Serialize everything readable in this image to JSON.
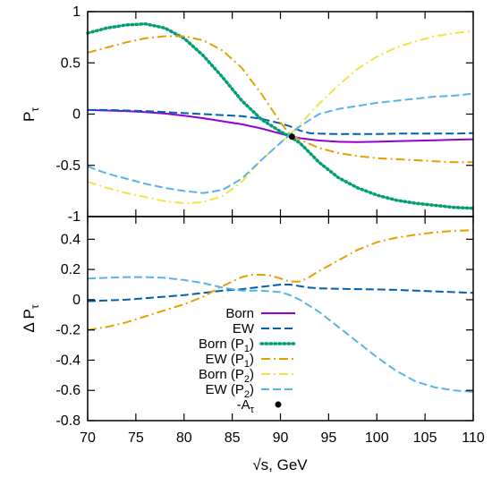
{
  "chart_data": [
    {
      "type": "line",
      "ylabel": "P",
      "ylabel_sub": "τ",
      "xlim": [
        70,
        110
      ],
      "ylim": [
        -1,
        1
      ],
      "yticks": [
        -1,
        -0.5,
        0,
        0.5,
        1
      ],
      "ytick_labels": [
        "-1",
        "-0.5",
        "0",
        "0.5",
        "1"
      ],
      "grid": false,
      "series": [
        {
          "key": "born",
          "color": "#9400d3",
          "dash": "solid",
          "x": [
            70,
            72,
            74,
            76,
            78,
            80,
            82,
            84,
            86,
            88,
            90,
            91,
            92,
            94,
            96,
            98,
            100,
            102,
            104,
            106,
            108,
            110
          ],
          "y": [
            0.04,
            0.035,
            0.03,
            0.02,
            0.005,
            -0.015,
            -0.04,
            -0.07,
            -0.1,
            -0.14,
            -0.19,
            -0.215,
            -0.235,
            -0.258,
            -0.27,
            -0.273,
            -0.27,
            -0.265,
            -0.26,
            -0.255,
            -0.25,
            -0.245
          ]
        },
        {
          "key": "ew",
          "color": "#0060ad",
          "dash": "dashed",
          "x": [
            70,
            72,
            74,
            76,
            78,
            80,
            82,
            84,
            86,
            88,
            90,
            91,
            92,
            93,
            94,
            96,
            98,
            100,
            102,
            104,
            106,
            108,
            110
          ],
          "y": [
            0.04,
            0.04,
            0.035,
            0.03,
            0.02,
            0.01,
            0.0,
            -0.01,
            -0.02,
            -0.045,
            -0.09,
            -0.12,
            -0.16,
            -0.185,
            -0.19,
            -0.195,
            -0.195,
            -0.195,
            -0.19,
            -0.19,
            -0.19,
            -0.19,
            -0.185
          ]
        },
        {
          "key": "born_p1",
          "color": "#009e73",
          "dash": "dotted",
          "x": [
            70,
            72,
            74,
            76,
            78,
            80,
            82,
            84,
            86,
            88,
            90,
            91,
            92,
            94,
            96,
            98,
            100,
            102,
            104,
            106,
            108,
            110
          ],
          "y": [
            0.79,
            0.84,
            0.87,
            0.88,
            0.84,
            0.74,
            0.57,
            0.36,
            0.13,
            -0.05,
            -0.17,
            -0.22,
            -0.28,
            -0.47,
            -0.62,
            -0.72,
            -0.79,
            -0.84,
            -0.87,
            -0.89,
            -0.91,
            -0.92
          ]
        },
        {
          "key": "ew_p1",
          "color": "#e69f00",
          "dash": "dashdot",
          "x": [
            70,
            72,
            74,
            76,
            78,
            80,
            82,
            84,
            86,
            88,
            90,
            91,
            92,
            94,
            96,
            98,
            100,
            102,
            104,
            106,
            108,
            110
          ],
          "y": [
            0.6,
            0.65,
            0.7,
            0.74,
            0.76,
            0.76,
            0.72,
            0.62,
            0.45,
            0.2,
            -0.08,
            -0.2,
            -0.25,
            -0.33,
            -0.38,
            -0.41,
            -0.43,
            -0.44,
            -0.45,
            -0.46,
            -0.47,
            -0.47
          ]
        },
        {
          "key": "born_p2",
          "color": "#f0e442",
          "dash": "dashdot",
          "x": [
            70,
            72,
            74,
            76,
            78,
            80,
            82,
            84,
            86,
            88,
            90,
            91,
            92,
            94,
            96,
            98,
            100,
            102,
            104,
            106,
            108,
            110
          ],
          "y": [
            -0.66,
            -0.72,
            -0.77,
            -0.81,
            -0.85,
            -0.87,
            -0.86,
            -0.8,
            -0.66,
            -0.45,
            -0.28,
            -0.2,
            -0.1,
            0.1,
            0.28,
            0.44,
            0.56,
            0.65,
            0.71,
            0.76,
            0.79,
            0.81
          ]
        },
        {
          "key": "ew_p2",
          "color": "#56b4e9",
          "dash": "dashed",
          "x": [
            70,
            72,
            74,
            76,
            78,
            80,
            82,
            84,
            86,
            88,
            90,
            91,
            92,
            94,
            96,
            98,
            100,
            102,
            104,
            106,
            108,
            110
          ],
          "y": [
            -0.51,
            -0.58,
            -0.63,
            -0.68,
            -0.72,
            -0.75,
            -0.77,
            -0.74,
            -0.63,
            -0.45,
            -0.28,
            -0.2,
            -0.12,
            0.0,
            0.05,
            0.08,
            0.11,
            0.13,
            0.15,
            0.17,
            0.18,
            0.2
          ]
        }
      ],
      "points": [
        {
          "key": "a_tau",
          "x": 91.2,
          "y": -0.22,
          "color": "#000000"
        }
      ]
    },
    {
      "type": "line",
      "xlabel": "√s, GeV",
      "ylabel": "Δ P",
      "ylabel_sub": "τ",
      "xlim": [
        70,
        110
      ],
      "ylim": [
        -0.8,
        0.55
      ],
      "xticks": [
        70,
        75,
        80,
        85,
        90,
        95,
        100,
        105,
        110
      ],
      "xtick_labels": [
        "70",
        "75",
        "80",
        "85",
        "90",
        "95",
        "100",
        "105",
        "110"
      ],
      "yticks": [
        -0.8,
        -0.6,
        -0.4,
        -0.2,
        0,
        0.2,
        0.4
      ],
      "ytick_labels": [
        "-0.8",
        "-0.6",
        "-0.4",
        "-0.2",
        "0",
        "0.2",
        "0.4"
      ],
      "grid": false,
      "legend_position": "bottom-center",
      "series": [
        {
          "key": "dp_ew",
          "color": "#0060ad",
          "dash": "dashed",
          "x": [
            70,
            72,
            74,
            76,
            78,
            80,
            82,
            84,
            86,
            88,
            90,
            91,
            92,
            93,
            94,
            96,
            98,
            100,
            102,
            104,
            106,
            108,
            110
          ],
          "y": [
            -0.01,
            -0.005,
            0.0,
            0.01,
            0.02,
            0.03,
            0.045,
            0.06,
            0.07,
            0.085,
            0.1,
            0.1,
            0.09,
            0.08,
            0.075,
            0.072,
            0.07,
            0.068,
            0.065,
            0.06,
            0.055,
            0.05,
            0.045
          ]
        },
        {
          "key": "dp_p1",
          "color": "#e69f00",
          "dash": "dashdot",
          "x": [
            70,
            72,
            74,
            76,
            78,
            80,
            82,
            84,
            86,
            87,
            88,
            89,
            90,
            91,
            92,
            93,
            94,
            96,
            98,
            100,
            102,
            104,
            106,
            108,
            110
          ],
          "y": [
            -0.2,
            -0.18,
            -0.15,
            -0.11,
            -0.07,
            -0.03,
            0.02,
            0.09,
            0.15,
            0.165,
            0.165,
            0.16,
            0.14,
            0.12,
            0.12,
            0.15,
            0.19,
            0.26,
            0.33,
            0.38,
            0.41,
            0.43,
            0.445,
            0.455,
            0.46
          ]
        },
        {
          "key": "dp_p2",
          "color": "#56b4e9",
          "dash": "dashed",
          "x": [
            70,
            72,
            74,
            76,
            78,
            80,
            82,
            84,
            86,
            88,
            90,
            91,
            92,
            94,
            96,
            98,
            100,
            102,
            104,
            106,
            108,
            110
          ],
          "y": [
            0.14,
            0.145,
            0.15,
            0.15,
            0.145,
            0.13,
            0.11,
            0.08,
            0.06,
            0.06,
            0.05,
            0.03,
            0.0,
            -0.08,
            -0.18,
            -0.28,
            -0.38,
            -0.47,
            -0.54,
            -0.58,
            -0.6,
            -0.61
          ]
        }
      ]
    }
  ],
  "legend": [
    {
      "key": "born",
      "label": "Born",
      "sub": "",
      "suffix": "",
      "style": "solid",
      "color": "#9400d3"
    },
    {
      "key": "ew",
      "label": "EW",
      "sub": "",
      "suffix": "",
      "style": "dashed",
      "color": "#0060ad"
    },
    {
      "key": "born_p1",
      "label": "Born (P",
      "sub": "1",
      "suffix": ")",
      "style": "dotted",
      "color": "#009e73"
    },
    {
      "key": "ew_p1",
      "label": "EW (P",
      "sub": "1",
      "suffix": ")",
      "style": "dashdot",
      "color": "#e69f00"
    },
    {
      "key": "born_p2",
      "label": "Born (P",
      "sub": "2",
      "suffix": ")",
      "style": "dashdot",
      "color": "#f0e442"
    },
    {
      "key": "ew_p2",
      "label": "EW (P",
      "sub": "2",
      "suffix": ")",
      "style": "dashed",
      "color": "#56b4e9"
    },
    {
      "key": "a_tau",
      "label": "-A",
      "sub": "τ",
      "suffix": "",
      "style": "point",
      "color": "#000000"
    }
  ]
}
